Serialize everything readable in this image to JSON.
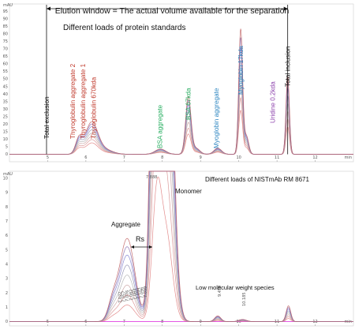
{
  "chart_data": [
    {
      "type": "line",
      "title": "Different loads of protein standards",
      "xlim": [
        4,
        13
      ],
      "ylim": [
        -5,
        100
      ],
      "y_unit_label": "mAU",
      "x_unit_label": "min",
      "x_ticks": [
        "5",
        "6",
        "7",
        "8",
        "9",
        "10",
        "11",
        "12"
      ],
      "y_ticks": [
        "0",
        "5",
        "10",
        "15",
        "20",
        "25",
        "30",
        "35",
        "40",
        "45",
        "50",
        "55",
        "60",
        "65",
        "70",
        "75",
        "80",
        "85",
        "90",
        "95"
      ],
      "elution_window_label": "Elution window = The actual volume available for the separation",
      "elution_window_x": [
        4.97,
        11.28
      ],
      "peak_labels": [
        {
          "text": "Total exclusion",
          "x": 4.97,
          "color": "#111111"
        },
        {
          "text": "Thyroglobulin aggregate 2",
          "x": 5.65,
          "color": "#c0392b"
        },
        {
          "text": "Thyroglobulin aggregate 1",
          "x": 5.92,
          "color": "#c0392b"
        },
        {
          "text": "Thyroglobulin 670kda",
          "x": 6.2,
          "color": "#c0392b"
        },
        {
          "text": "BSA aggregate",
          "x": 7.93,
          "color": "#27ae60"
        },
        {
          "text": "BSA 67kda",
          "x": 8.68,
          "color": "#27ae60"
        },
        {
          "text": "Myoglobin aggregate",
          "x": 9.41,
          "color": "#2e86c1"
        },
        {
          "text": "Myoglobin 17kda",
          "x": 10.05,
          "color": "#2e86c1"
        },
        {
          "text": "Uridine 0.2kda",
          "x": 10.88,
          "color": "#8e44ad"
        },
        {
          "text": "Total inclusion",
          "x": 11.28,
          "color": "#111111"
        }
      ],
      "peaks_max_load": [
        {
          "x": 5.82,
          "y": 10,
          "w": 0.09
        },
        {
          "x": 6.15,
          "y": 21,
          "w": 0.16
        },
        {
          "x": 6.5,
          "y": 3,
          "w": 0.2
        },
        {
          "x": 7.95,
          "y": 3.5,
          "w": 0.14
        },
        {
          "x": 8.68,
          "y": 38,
          "w": 0.07
        },
        {
          "x": 8.88,
          "y": 4,
          "w": 0.1
        },
        {
          "x": 9.45,
          "y": 4,
          "w": 0.1
        },
        {
          "x": 10.05,
          "y": 83,
          "w": 0.05
        },
        {
          "x": 10.2,
          "y": 12,
          "w": 0.06
        },
        {
          "x": 11.28,
          "y": 52,
          "w": 0.045
        }
      ],
      "load_scales": [
        0.35,
        0.45,
        0.55,
        0.65,
        0.75,
        0.85,
        0.93,
        1.0
      ],
      "series_colors": [
        "#e08080",
        "#d89090",
        "#c8a0a0",
        "#b0b0b0",
        "#9090b0",
        "#7f7fcf",
        "#8a6fb0",
        "#c06060"
      ]
    },
    {
      "type": "line",
      "title": "Different loads of NISTmAb RM 8671",
      "xlim": [
        4,
        13
      ],
      "ylim": [
        -0.3,
        10.5
      ],
      "y_unit_label": "mAU",
      "x_unit_label": "min",
      "x_ticks": [
        "5",
        "6",
        "7",
        "8",
        "9",
        "10",
        "11",
        "12"
      ],
      "y_ticks": [
        "0",
        "1",
        "2",
        "3",
        "4",
        "5",
        "6",
        "7",
        "8",
        "9",
        "10"
      ],
      "annotations": {
        "monomer": "Monomer",
        "aggregate": "Aggregate",
        "rs": "Rs",
        "lmw": "Low molecular weight species",
        "monomer_peak_label": "7.888",
        "lmw_peak_label": "9.459",
        "lmw_peak_label_2": "10.185"
      },
      "aggregate_rt_labels": [
        "7.022",
        "7.057",
        "7.076",
        "7.082",
        "7.083",
        "7.094",
        "7.096",
        "7.099"
      ],
      "peaks_max_load": [
        {
          "x": 6.7,
          "y": 1.2,
          "w": 0.12
        },
        {
          "x": 7.08,
          "y": 5.8,
          "w": 0.2
        },
        {
          "x": 7.85,
          "y": 40,
          "w": 0.12
        },
        {
          "x": 8.1,
          "y": 30,
          "w": 0.16
        },
        {
          "x": 9.45,
          "y": 0.4,
          "w": 0.08
        },
        {
          "x": 10.1,
          "y": 0.15,
          "w": 0.1
        },
        {
          "x": 11.3,
          "y": 1.1,
          "w": 0.06
        }
      ],
      "load_scales": [
        0.2,
        0.32,
        0.44,
        0.56,
        0.68,
        0.8,
        0.9,
        1.0
      ],
      "series_colors": [
        "#e08080",
        "#d89090",
        "#c8a0a0",
        "#b0b0b0",
        "#9090b0",
        "#7f7fcf",
        "#8a6fb0",
        "#c06060"
      ],
      "baseline_color": "#e040e0"
    }
  ]
}
